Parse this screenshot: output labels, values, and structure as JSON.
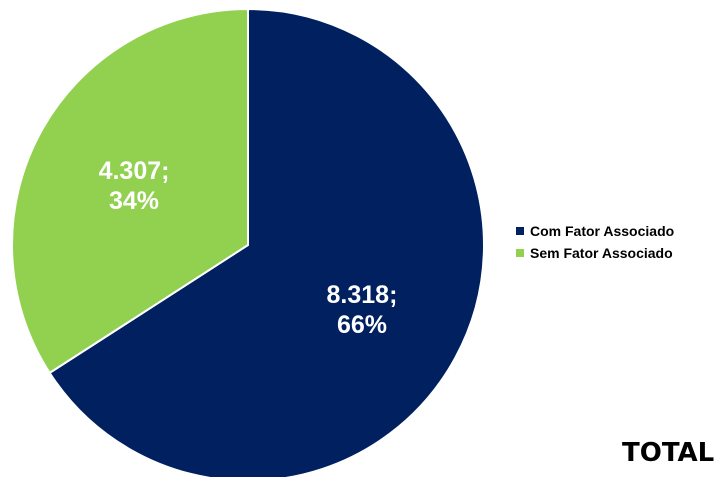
{
  "chart_data": {
    "type": "pie",
    "title": "",
    "slices": [
      {
        "name": "Com Fator Associado",
        "value": 8318,
        "value_label": "8.318;",
        "percent_label": "66%",
        "color": "#002060"
      },
      {
        "name": "Sem Fator Associado",
        "value": 4307,
        "value_label": "4.307;",
        "percent_label": "34%",
        "color": "#92D050"
      }
    ],
    "start_angle_deg": 0,
    "direction": "clockwise",
    "legend_position": "right",
    "data_labels": true
  },
  "footer": {
    "total_label": "TOTAL"
  }
}
